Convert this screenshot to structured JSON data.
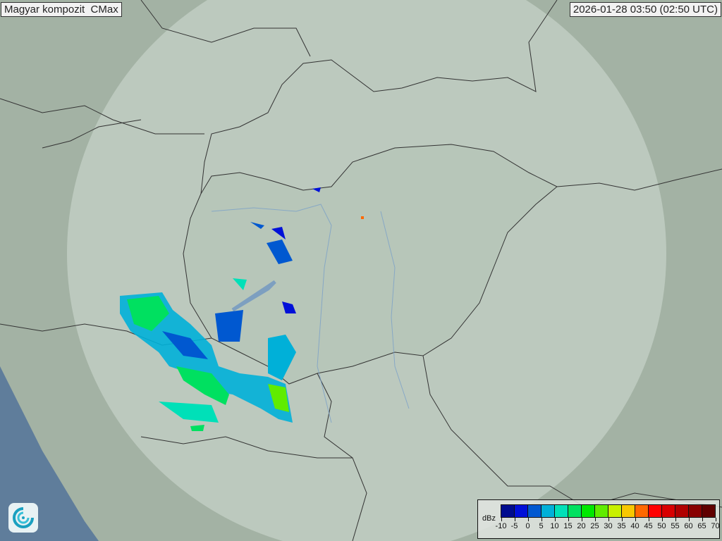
{
  "header": {
    "title": "Magyar kompozit  CMax",
    "timestamp": "2026-01-28 03:50 (02:50 UTC)"
  },
  "legend": {
    "unit": "dBz",
    "ticks": [
      "-10",
      "-5",
      "0",
      "5",
      "10",
      "15",
      "20",
      "25",
      "30",
      "35",
      "40",
      "45",
      "50",
      "55",
      "60",
      "65",
      "70"
    ],
    "colors": [
      "#000c8e",
      "#0010d8",
      "#0058d0",
      "#00b0d8",
      "#00e0b8",
      "#00e060",
      "#00e800",
      "#60ec00",
      "#c8f000",
      "#f8c800",
      "#ff6800",
      "#ff0000",
      "#d80000",
      "#b00000",
      "#880000",
      "#600000"
    ]
  },
  "map": {
    "land_color": "#a3b2a4",
    "coverage_color": "#c9d6cc",
    "sea_color": "#5c7a99",
    "logo_icon": "met-service-swirl-logo"
  }
}
